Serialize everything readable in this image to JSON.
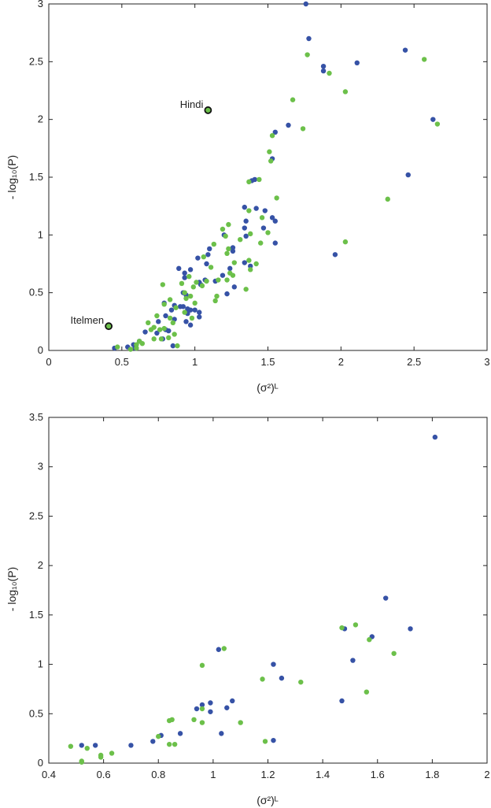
{
  "colors": {
    "blue": "#3652a6",
    "green": "#6cc04a",
    "frame": "#222222"
  },
  "chart_data": [
    {
      "type": "scatter",
      "title": "",
      "xlabel": "(σ²)ᴸ",
      "ylabel": "- log₁₀(P)",
      "xlim": [
        0,
        3
      ],
      "ylim": [
        0,
        3
      ],
      "x_ticks": [
        0,
        0.5,
        1,
        1.5,
        2,
        2.5,
        3
      ],
      "x_tick_labels": [
        "0",
        "0.5",
        "1",
        "1.5",
        "2",
        "2.5",
        "3"
      ],
      "y_ticks": [
        0,
        0.5,
        1,
        1.5,
        2,
        2.5,
        3
      ],
      "y_tick_labels": [
        "0",
        "0.5",
        "1",
        "1.5",
        "2",
        "2.5",
        "3"
      ],
      "grid": false,
      "legend": "none",
      "annotations": [
        {
          "text": "Hindi",
          "x": 1.09,
          "y": 2.08,
          "placement": "left-above"
        },
        {
          "text": "Itelmen",
          "x": 0.41,
          "y": 0.21,
          "placement": "left-above"
        }
      ],
      "series": [
        {
          "color": "blue",
          "points": [
            [
              1.76,
              3.0
            ],
            [
              1.78,
              2.7
            ],
            [
              2.44,
              2.6
            ],
            [
              2.11,
              2.49
            ],
            [
              1.88,
              2.46
            ],
            [
              1.88,
              2.42
            ],
            [
              2.63,
              2.0
            ],
            [
              1.64,
              1.95
            ],
            [
              1.55,
              1.89
            ],
            [
              2.46,
              1.52
            ],
            [
              1.53,
              1.66
            ],
            [
              1.41,
              1.48
            ],
            [
              1.39,
              1.47
            ],
            [
              1.34,
              1.24
            ],
            [
              1.42,
              1.23
            ],
            [
              1.48,
              1.21
            ],
            [
              1.53,
              1.15
            ],
            [
              1.55,
              1.12
            ],
            [
              1.35,
              1.12
            ],
            [
              1.34,
              1.06
            ],
            [
              1.47,
              1.06
            ],
            [
              1.2,
              1.0
            ],
            [
              1.35,
              0.99
            ],
            [
              1.55,
              0.93
            ],
            [
              1.26,
              0.89
            ],
            [
              1.26,
              0.86
            ],
            [
              1.1,
              0.88
            ],
            [
              1.96,
              0.83
            ],
            [
              1.09,
              0.83
            ],
            [
              1.02,
              0.8
            ],
            [
              1.08,
              0.75
            ],
            [
              1.34,
              0.76
            ],
            [
              1.38,
              0.73
            ],
            [
              1.24,
              0.71
            ],
            [
              0.89,
              0.71
            ],
            [
              0.97,
              0.7
            ],
            [
              0.93,
              0.67
            ],
            [
              1.19,
              0.65
            ],
            [
              0.93,
              0.63
            ],
            [
              1.07,
              0.61
            ],
            [
              1.03,
              0.59
            ],
            [
              1.14,
              0.6
            ],
            [
              1.04,
              0.57
            ],
            [
              1.27,
              0.55
            ],
            [
              0.92,
              0.5
            ],
            [
              0.94,
              0.48
            ],
            [
              1.22,
              0.49
            ],
            [
              0.79,
              0.41
            ],
            [
              0.86,
              0.39
            ],
            [
              0.9,
              0.38
            ],
            [
              0.92,
              0.38
            ],
            [
              0.95,
              0.36
            ],
            [
              0.97,
              0.35
            ],
            [
              1.0,
              0.35
            ],
            [
              0.84,
              0.35
            ],
            [
              0.95,
              0.32
            ],
            [
              0.8,
              0.3
            ],
            [
              1.03,
              0.33
            ],
            [
              1.03,
              0.29
            ],
            [
              0.75,
              0.25
            ],
            [
              0.94,
              0.25
            ],
            [
              0.8,
              0.18
            ],
            [
              0.66,
              0.16
            ],
            [
              0.82,
              0.17
            ],
            [
              0.74,
              0.15
            ],
            [
              0.78,
              0.1
            ],
            [
              0.62,
              0.08
            ],
            [
              0.85,
              0.04
            ],
            [
              0.54,
              0.03
            ],
            [
              0.45,
              0.02
            ],
            [
              0.59,
              0.02
            ],
            [
              0.58,
              0.05
            ],
            [
              0.86,
              0.27
            ],
            [
              0.97,
              0.22
            ]
          ]
        },
        {
          "color": "green",
          "points": [
            [
              1.77,
              2.56
            ],
            [
              2.57,
              2.52
            ],
            [
              1.92,
              2.4
            ],
            [
              2.03,
              2.24
            ],
            [
              1.67,
              2.17
            ],
            [
              2.66,
              1.96
            ],
            [
              1.74,
              1.92
            ],
            [
              1.53,
              1.86
            ],
            [
              1.51,
              1.72
            ],
            [
              1.52,
              1.64
            ],
            [
              1.37,
              1.46
            ],
            [
              1.44,
              1.48
            ],
            [
              1.56,
              1.32
            ],
            [
              2.32,
              1.31
            ],
            [
              1.37,
              1.21
            ],
            [
              1.46,
              1.15
            ],
            [
              1.23,
              1.09
            ],
            [
              1.19,
              1.05
            ],
            [
              1.38,
              1.01
            ],
            [
              1.5,
              1.02
            ],
            [
              1.21,
              0.99
            ],
            [
              1.31,
              0.96
            ],
            [
              2.03,
              0.94
            ],
            [
              1.45,
              0.93
            ],
            [
              1.13,
              0.92
            ],
            [
              1.23,
              0.88
            ],
            [
              1.22,
              0.84
            ],
            [
              1.06,
              0.81
            ],
            [
              1.37,
              0.78
            ],
            [
              1.27,
              0.76
            ],
            [
              1.42,
              0.75
            ],
            [
              1.11,
              0.72
            ],
            [
              1.38,
              0.7
            ],
            [
              1.24,
              0.67
            ],
            [
              1.26,
              0.65
            ],
            [
              1.22,
              0.61
            ],
            [
              1.16,
              0.61
            ],
            [
              0.96,
              0.64
            ],
            [
              1.08,
              0.6
            ],
            [
              1.01,
              0.59
            ],
            [
              0.91,
              0.58
            ],
            [
              0.78,
              0.57
            ],
            [
              1.05,
              0.56
            ],
            [
              0.99,
              0.55
            ],
            [
              1.35,
              0.53
            ],
            [
              0.93,
              0.5
            ],
            [
              0.97,
              0.47
            ],
            [
              1.15,
              0.47
            ],
            [
              1.14,
              0.43
            ],
            [
              0.83,
              0.44
            ],
            [
              0.94,
              0.45
            ],
            [
              1.0,
              0.41
            ],
            [
              0.79,
              0.4
            ],
            [
              0.87,
              0.37
            ],
            [
              0.93,
              0.33
            ],
            [
              0.74,
              0.3
            ],
            [
              0.83,
              0.28
            ],
            [
              0.98,
              0.28
            ],
            [
              0.85,
              0.24
            ],
            [
              0.68,
              0.24
            ],
            [
              0.72,
              0.2
            ],
            [
              0.79,
              0.19
            ],
            [
              0.7,
              0.18
            ],
            [
              0.76,
              0.18
            ],
            [
              0.72,
              0.1
            ],
            [
              0.77,
              0.1
            ],
            [
              0.62,
              0.08
            ],
            [
              0.64,
              0.06
            ],
            [
              0.6,
              0.05
            ],
            [
              0.47,
              0.03
            ],
            [
              0.6,
              0.02
            ],
            [
              0.56,
              0.01
            ],
            [
              0.86,
              0.14
            ],
            [
              0.82,
              0.11
            ],
            [
              0.88,
              0.04
            ]
          ]
        }
      ],
      "highlighted_points": [
        {
          "x": 1.09,
          "y": 2.08,
          "color": "green"
        },
        {
          "x": 0.41,
          "y": 0.21,
          "color": "green"
        }
      ]
    },
    {
      "type": "scatter",
      "title": "",
      "xlabel": "(σ²)ᴸ",
      "ylabel": "- log₁₀(P)",
      "xlim": [
        0.4,
        2
      ],
      "ylim": [
        0,
        3.5
      ],
      "x_ticks": [
        0.4,
        0.6,
        0.8,
        1,
        1.2,
        1.4,
        1.6,
        1.8,
        2
      ],
      "x_tick_labels": [
        "0.4",
        "0.6",
        "0.8",
        "1",
        "1.2",
        "1.4",
        "1.6",
        "1.8",
        "2"
      ],
      "y_ticks": [
        0,
        0.5,
        1,
        1.5,
        2,
        2.5,
        3,
        3.5
      ],
      "y_tick_labels": [
        "0",
        "0.5",
        "1",
        "1.5",
        "2",
        "2.5",
        "3",
        "3.5"
      ],
      "grid": false,
      "legend": "none",
      "annotations": [],
      "series": [
        {
          "color": "blue",
          "points": [
            [
              1.81,
              3.3
            ],
            [
              1.63,
              1.67
            ],
            [
              1.72,
              1.36
            ],
            [
              1.48,
              1.36
            ],
            [
              1.58,
              1.28
            ],
            [
              1.51,
              1.04
            ],
            [
              1.02,
              1.15
            ],
            [
              1.22,
              1.0
            ],
            [
              1.25,
              0.86
            ],
            [
              1.47,
              0.63
            ],
            [
              1.07,
              0.63
            ],
            [
              0.96,
              0.59
            ],
            [
              0.99,
              0.61
            ],
            [
              0.94,
              0.55
            ],
            [
              1.05,
              0.56
            ],
            [
              0.99,
              0.52
            ],
            [
              1.03,
              0.3
            ],
            [
              0.88,
              0.3
            ],
            [
              0.81,
              0.28
            ],
            [
              0.78,
              0.22
            ],
            [
              1.22,
              0.23
            ],
            [
              0.7,
              0.18
            ],
            [
              0.52,
              0.18
            ],
            [
              0.57,
              0.18
            ]
          ]
        },
        {
          "color": "green",
          "points": [
            [
              1.52,
              1.4
            ],
            [
              1.47,
              1.37
            ],
            [
              1.57,
              1.25
            ],
            [
              1.04,
              1.16
            ],
            [
              1.66,
              1.11
            ],
            [
              0.96,
              0.99
            ],
            [
              1.18,
              0.85
            ],
            [
              1.32,
              0.82
            ],
            [
              1.56,
              0.72
            ],
            [
              0.96,
              0.55
            ],
            [
              0.85,
              0.44
            ],
            [
              0.84,
              0.43
            ],
            [
              0.93,
              0.44
            ],
            [
              0.96,
              0.41
            ],
            [
              1.1,
              0.41
            ],
            [
              0.8,
              0.27
            ],
            [
              0.84,
              0.19
            ],
            [
              0.86,
              0.19
            ],
            [
              1.19,
              0.22
            ],
            [
              0.48,
              0.17
            ],
            [
              0.54,
              0.15
            ],
            [
              0.63,
              0.1
            ],
            [
              0.59,
              0.08
            ],
            [
              0.59,
              0.06
            ],
            [
              0.52,
              0.02
            ],
            [
              0.52,
              0.01
            ]
          ]
        }
      ],
      "highlighted_points": []
    }
  ]
}
